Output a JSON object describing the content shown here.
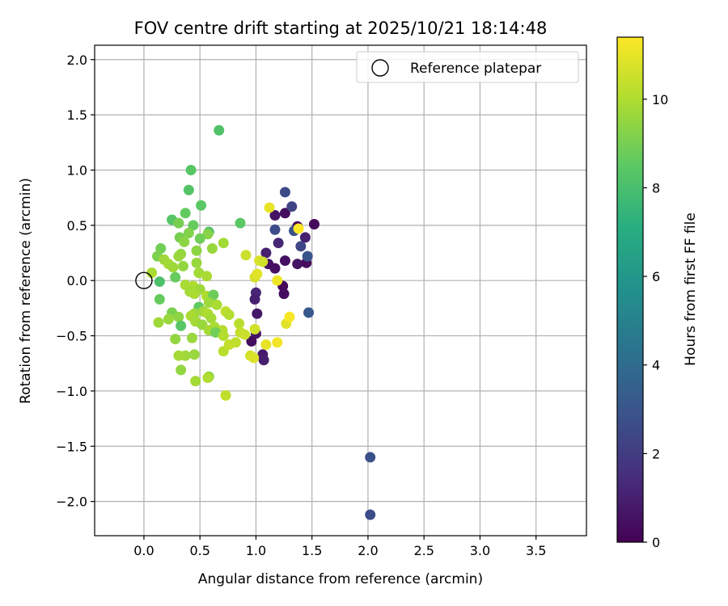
{
  "chart_data": {
    "type": "scatter",
    "title": "FOV centre drift starting at 2025/10/21 18:14:48",
    "xlabel": "Angular distance from reference (arcmin)",
    "ylabel": "Rotation from reference (arcmin)",
    "xlim": [
      -0.44,
      3.95
    ],
    "ylim": [
      -2.31,
      2.13
    ],
    "xticks": [
      0.0,
      0.5,
      1.0,
      1.5,
      2.0,
      2.5,
      3.0,
      3.5
    ],
    "xtick_labels": [
      "0.0",
      "0.5",
      "1.0",
      "1.5",
      "2.0",
      "2.5",
      "3.0",
      "3.5"
    ],
    "yticks": [
      2.0,
      1.5,
      1.0,
      0.5,
      0.0,
      -0.5,
      -1.0,
      -1.5,
      -2.0
    ],
    "ytick_labels": [
      "2.0",
      "1.5",
      "1.0",
      "0.5",
      "0.0",
      "−0.5",
      "−1.0",
      "−1.5",
      "−2.0"
    ],
    "grid": true,
    "legend": {
      "position": "upper-right",
      "entries": [
        "Reference platepar"
      ]
    },
    "reference_point": {
      "label": "Reference platepar",
      "x": 0.0,
      "y": 0.0
    },
    "colorbar": {
      "label": "Hours from first FF file",
      "colormap": "viridis",
      "range": [
        0,
        11.4
      ],
      "ticks": [
        0,
        2,
        4,
        6,
        8,
        10
      ],
      "tick_labels": [
        "0",
        "2",
        "4",
        "6",
        "8",
        "10"
      ]
    },
    "series": [
      {
        "points": [
          {
            "x": 1.52,
            "y": 0.51,
            "h": 0.3
          },
          {
            "x": 1.26,
            "y": 0.61,
            "h": 0.4
          },
          {
            "x": 1.17,
            "y": 0.59,
            "h": 0.6
          },
          {
            "x": 1.37,
            "y": 0.49,
            "h": 0.2
          },
          {
            "x": 1.44,
            "y": 0.39,
            "h": 1.0
          },
          {
            "x": 1.2,
            "y": 0.34,
            "h": 1.2
          },
          {
            "x": 1.09,
            "y": 0.25,
            "h": 1.0
          },
          {
            "x": 1.11,
            "y": 0.15,
            "h": 0.5
          },
          {
            "x": 1.26,
            "y": 0.18,
            "h": 0.5
          },
          {
            "x": 1.37,
            "y": 0.15,
            "h": 0.6
          },
          {
            "x": 1.45,
            "y": 0.16,
            "h": 0.4
          },
          {
            "x": 1.17,
            "y": 0.11,
            "h": 0.5
          },
          {
            "x": 1.24,
            "y": -0.05,
            "h": 0.2
          },
          {
            "x": 1.25,
            "y": -0.12,
            "h": 0.4
          },
          {
            "x": 1.0,
            "y": -0.11,
            "h": 1.2
          },
          {
            "x": 0.99,
            "y": -0.17,
            "h": 1.0
          },
          {
            "x": 1.01,
            "y": -0.3,
            "h": 0.7
          },
          {
            "x": 1.0,
            "y": -0.48,
            "h": 0.6
          },
          {
            "x": 0.96,
            "y": -0.55,
            "h": 0.4
          },
          {
            "x": 1.06,
            "y": -0.67,
            "h": 0.8
          },
          {
            "x": 1.07,
            "y": -0.72,
            "h": 1.0
          },
          {
            "x": 1.26,
            "y": 0.8,
            "h": 2.6
          },
          {
            "x": 1.32,
            "y": 0.67,
            "h": 2.3
          },
          {
            "x": 1.17,
            "y": 0.46,
            "h": 2.6
          },
          {
            "x": 1.34,
            "y": 0.45,
            "h": 2.8
          },
          {
            "x": 1.4,
            "y": 0.31,
            "h": 2.4
          },
          {
            "x": 1.46,
            "y": 0.22,
            "h": 3.0
          },
          {
            "x": 1.47,
            "y": -0.29,
            "h": 3.1
          },
          {
            "x": 2.02,
            "y": -1.6,
            "h": 2.8
          },
          {
            "x": 2.02,
            "y": -2.12,
            "h": 2.6
          },
          {
            "x": 0.67,
            "y": 1.36,
            "h": 8.2
          },
          {
            "x": 0.42,
            "y": 1.0,
            "h": 8.4
          },
          {
            "x": 0.4,
            "y": 0.82,
            "h": 8.3
          },
          {
            "x": 0.51,
            "y": 0.68,
            "h": 8.5
          },
          {
            "x": 0.37,
            "y": 0.61,
            "h": 8.6
          },
          {
            "x": 0.25,
            "y": 0.55,
            "h": 8.3
          },
          {
            "x": 0.31,
            "y": 0.52,
            "h": 9.0
          },
          {
            "x": 0.44,
            "y": 0.5,
            "h": 8.7
          },
          {
            "x": 0.86,
            "y": 0.52,
            "h": 8.5
          },
          {
            "x": 0.58,
            "y": 0.44,
            "h": 8.2
          },
          {
            "x": 0.4,
            "y": 0.43,
            "h": 9.2
          },
          {
            "x": 0.32,
            "y": 0.39,
            "h": 9.0
          },
          {
            "x": 0.57,
            "y": 0.42,
            "h": 9.3
          },
          {
            "x": 0.5,
            "y": 0.38,
            "h": 8.9
          },
          {
            "x": 0.36,
            "y": 0.35,
            "h": 9.4
          },
          {
            "x": 0.61,
            "y": 0.29,
            "h": 9.6
          },
          {
            "x": 0.71,
            "y": 0.34,
            "h": 9.8
          },
          {
            "x": 0.15,
            "y": 0.29,
            "h": 8.9
          },
          {
            "x": 0.47,
            "y": 0.27,
            "h": 9.4
          },
          {
            "x": 0.33,
            "y": 0.24,
            "h": 9.5
          },
          {
            "x": 0.12,
            "y": 0.22,
            "h": 9.1
          },
          {
            "x": 0.31,
            "y": 0.22,
            "h": 9.6
          },
          {
            "x": 0.18,
            "y": 0.19,
            "h": 9.7
          },
          {
            "x": 0.22,
            "y": 0.15,
            "h": 9.8
          },
          {
            "x": 0.35,
            "y": 0.13,
            "h": 9.5
          },
          {
            "x": 0.47,
            "y": 0.16,
            "h": 9.6
          },
          {
            "x": 0.26,
            "y": 0.12,
            "h": 9.7
          },
          {
            "x": 0.07,
            "y": 0.07,
            "h": 9.9
          },
          {
            "x": 0.49,
            "y": 0.07,
            "h": 9.8
          },
          {
            "x": 0.28,
            "y": 0.03,
            "h": 8.7
          },
          {
            "x": 0.56,
            "y": 0.04,
            "h": 9.9
          },
          {
            "x": 0.14,
            "y": -0.01,
            "h": 8.1
          },
          {
            "x": 0.37,
            "y": -0.04,
            "h": 9.9
          },
          {
            "x": 0.44,
            "y": -0.05,
            "h": 10.0
          },
          {
            "x": 0.41,
            "y": -0.1,
            "h": 9.8
          },
          {
            "x": 0.5,
            "y": -0.08,
            "h": 9.7
          },
          {
            "x": 0.45,
            "y": -0.12,
            "h": 9.9
          },
          {
            "x": 0.56,
            "y": -0.14,
            "h": 10.0
          },
          {
            "x": 0.59,
            "y": -0.16,
            "h": 9.9
          },
          {
            "x": 0.62,
            "y": -0.13,
            "h": 8.8
          },
          {
            "x": 0.14,
            "y": -0.17,
            "h": 8.7
          },
          {
            "x": 0.58,
            "y": -0.2,
            "h": 9.7
          },
          {
            "x": 0.65,
            "y": -0.22,
            "h": 9.9
          },
          {
            "x": 0.49,
            "y": -0.24,
            "h": 8.6
          },
          {
            "x": 0.53,
            "y": -0.28,
            "h": 9.8
          },
          {
            "x": 0.57,
            "y": -0.3,
            "h": 10.0
          },
          {
            "x": 0.25,
            "y": -0.29,
            "h": 9.1
          },
          {
            "x": 0.45,
            "y": -0.3,
            "h": 9.7
          },
          {
            "x": 0.6,
            "y": -0.34,
            "h": 9.8
          },
          {
            "x": 0.42,
            "y": -0.32,
            "h": 9.9
          },
          {
            "x": 0.31,
            "y": -0.33,
            "h": 9.4
          },
          {
            "x": 0.22,
            "y": -0.35,
            "h": 9.6
          },
          {
            "x": 0.13,
            "y": -0.38,
            "h": 9.7
          },
          {
            "x": 0.46,
            "y": -0.37,
            "h": 9.8
          },
          {
            "x": 0.52,
            "y": -0.4,
            "h": 9.6
          },
          {
            "x": 0.33,
            "y": -0.41,
            "h": 8.4
          },
          {
            "x": 0.63,
            "y": -0.42,
            "h": 9.9
          },
          {
            "x": 0.58,
            "y": -0.45,
            "h": 9.8
          },
          {
            "x": 0.7,
            "y": -0.45,
            "h": 10.1
          },
          {
            "x": 0.64,
            "y": -0.47,
            "h": 8.9
          },
          {
            "x": 0.43,
            "y": -0.52,
            "h": 9.6
          },
          {
            "x": 0.28,
            "y": -0.53,
            "h": 9.5
          },
          {
            "x": 0.71,
            "y": -0.5,
            "h": 10.1
          },
          {
            "x": 0.37,
            "y": -0.68,
            "h": 9.7
          },
          {
            "x": 0.45,
            "y": -0.67,
            "h": 9.6
          },
          {
            "x": 0.31,
            "y": -0.68,
            "h": 9.8
          },
          {
            "x": 0.33,
            "y": -0.81,
            "h": 9.5
          },
          {
            "x": 0.58,
            "y": -0.87,
            "h": 9.3
          },
          {
            "x": 0.57,
            "y": -0.88,
            "h": 10.0
          },
          {
            "x": 0.46,
            "y": -0.91,
            "h": 9.8
          },
          {
            "x": 0.73,
            "y": -1.04,
            "h": 10.3
          },
          {
            "x": 0.71,
            "y": -0.64,
            "h": 10.2
          },
          {
            "x": 0.73,
            "y": -0.28,
            "h": 10.3
          },
          {
            "x": 0.76,
            "y": -0.31,
            "h": 10.1
          },
          {
            "x": 0.76,
            "y": -0.58,
            "h": 10.4
          },
          {
            "x": 0.82,
            "y": -0.56,
            "h": 10.3
          },
          {
            "x": 0.85,
            "y": -0.39,
            "h": 10.2
          },
          {
            "x": 0.86,
            "y": -0.47,
            "h": 10.4
          },
          {
            "x": 0.9,
            "y": -0.49,
            "h": 10.5
          },
          {
            "x": 0.95,
            "y": -0.68,
            "h": 10.6
          },
          {
            "x": 0.98,
            "y": -0.7,
            "h": 10.8
          },
          {
            "x": 0.99,
            "y": -0.44,
            "h": 10.6
          },
          {
            "x": 0.91,
            "y": 0.23,
            "h": 10.5
          },
          {
            "x": 0.99,
            "y": 0.03,
            "h": 10.7
          },
          {
            "x": 1.03,
            "y": 0.18,
            "h": 10.8
          },
          {
            "x": 1.01,
            "y": 0.06,
            "h": 10.9
          },
          {
            "x": 1.06,
            "y": 0.17,
            "h": 10.6
          },
          {
            "x": 1.12,
            "y": 0.66,
            "h": 11.0
          },
          {
            "x": 1.19,
            "y": 0.0,
            "h": 11.1
          },
          {
            "x": 1.09,
            "y": -0.58,
            "h": 11.0
          },
          {
            "x": 1.19,
            "y": -0.56,
            "h": 11.2
          },
          {
            "x": 1.27,
            "y": -0.39,
            "h": 10.9
          },
          {
            "x": 1.3,
            "y": -0.33,
            "h": 11.3
          },
          {
            "x": 1.38,
            "y": 0.47,
            "h": 11.4
          }
        ]
      }
    ]
  }
}
